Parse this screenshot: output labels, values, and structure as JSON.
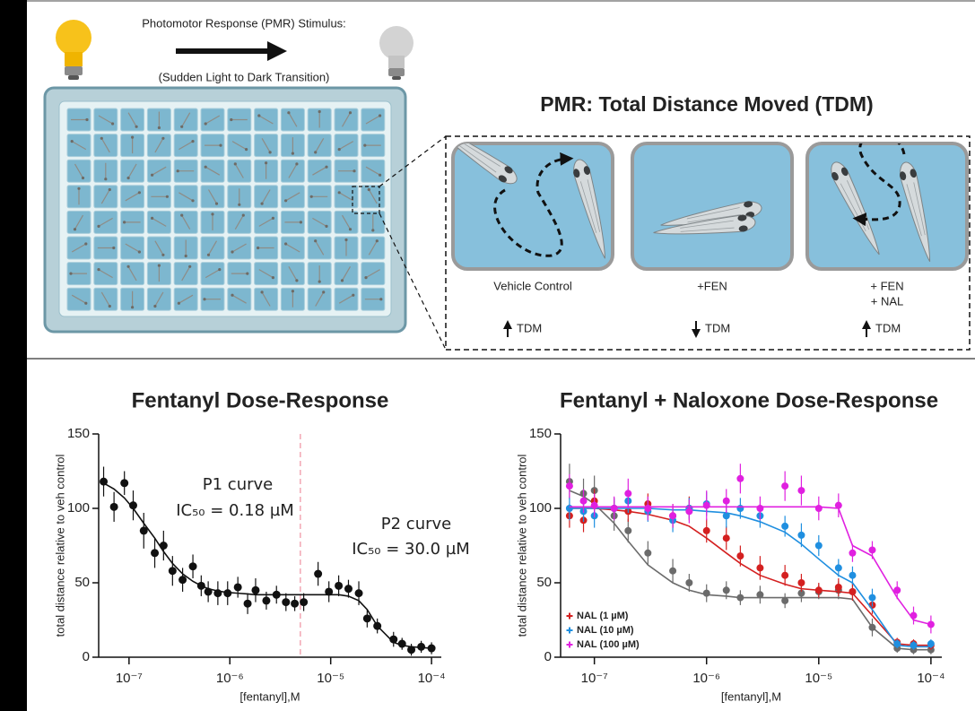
{
  "diagram": {
    "stimulus": {
      "title": "Photomotor Response (PMR) Stimulus:",
      "subtitle": "(Sudden Light to Dark Transition)"
    },
    "panel_title": "PMR: Total Distance Moved (TDM)",
    "conditions": [
      {
        "label": [
          "Vehicle Control"
        ],
        "effect": "TDM"
      },
      {
        "label": [
          "+FEN"
        ],
        "effect": "TDM"
      },
      {
        "label": [
          "+ FEN",
          "+ NAL"
        ],
        "effect": "TDM"
      }
    ]
  },
  "chart_data": [
    {
      "type": "scatter",
      "title": "Fentanyl Dose-Response",
      "xlabel": "[fentanyl],M",
      "ylabel": "total distance relative to veh control",
      "annotations": [
        "P1 curve",
        "IC₅₀ = 0.18 µM",
        "P2 curve",
        "IC₅₀ = 30.0 µM"
      ],
      "xscale": "log",
      "xlim": [
        5e-08,
        0.000125
      ],
      "xticks": [
        {
          "value": 1e-07,
          "label": "10⁻⁷"
        },
        {
          "value": 1e-06,
          "label": "10⁻⁶"
        },
        {
          "value": 1e-05,
          "label": "10⁻⁵"
        },
        {
          "value": 0.0001,
          "label": "10⁻⁴"
        }
      ],
      "ylim": [
        0,
        150
      ],
      "yticks": [
        0,
        50,
        100,
        150
      ],
      "color": "#111111",
      "reference_line": {
        "x": 5e-06,
        "color": "#f2a7b3"
      },
      "x": [
        5.6e-08,
        7.1e-08,
        9e-08,
        1.1e-07,
        1.4e-07,
        1.8e-07,
        2.2e-07,
        2.7e-07,
        3.4e-07,
        4.3e-07,
        5.2e-07,
        6.1e-07,
        7.6e-07,
        9.5e-07,
        1.2e-06,
        1.5e-06,
        1.8e-06,
        2.3e-06,
        2.9e-06,
        3.6e-06,
        4.4e-06,
        5.4e-06,
        7.5e-06,
        9.6e-06,
        1.2e-05,
        1.5e-05,
        1.9e-05,
        2.3e-05,
        2.9e-05,
        4.2e-05,
        5.1e-05,
        6.3e-05,
        7.9e-05,
        0.0001
      ],
      "values": [
        118,
        101,
        117,
        102,
        85,
        70,
        75,
        58,
        52,
        61,
        48,
        44,
        43,
        43,
        47,
        36,
        45,
        38,
        42,
        37,
        36,
        37,
        56,
        44,
        48,
        46,
        43,
        26,
        21,
        12,
        9,
        5,
        7,
        6
      ],
      "errors": [
        10,
        10,
        8,
        10,
        12,
        10,
        10,
        10,
        8,
        8,
        7,
        7,
        8,
        8,
        7,
        7,
        8,
        6,
        6,
        6,
        5,
        6,
        8,
        7,
        7,
        6,
        8,
        6,
        5,
        5,
        4,
        4,
        4,
        4
      ],
      "fit": [
        117,
        113,
        107,
        100,
        90,
        80,
        71,
        63,
        56,
        51,
        48,
        46,
        44.5,
        43.5,
        43,
        42.5,
        42,
        42,
        42,
        42,
        42,
        42,
        42,
        42,
        42,
        41,
        38,
        32,
        21,
        10,
        8,
        7,
        6.5,
        6
      ]
    },
    {
      "type": "scatter",
      "title": "Fentanyl + Naloxone Dose-Response",
      "xlabel": "[fentanyl],M",
      "ylabel": "total distance relative to veh control",
      "xscale": "log",
      "xlim": [
        5e-08,
        0.000125
      ],
      "xticks": [
        {
          "value": 1e-07,
          "label": "10⁻⁷"
        },
        {
          "value": 1e-06,
          "label": "10⁻⁶"
        },
        {
          "value": 1e-05,
          "label": "10⁻⁵"
        },
        {
          "value": 0.0001,
          "label": "10⁻⁴"
        }
      ],
      "ylim": [
        0,
        150
      ],
      "yticks": [
        0,
        50,
        100,
        150
      ],
      "legend": "lower left",
      "x": [
        6e-08,
        8e-08,
        1e-07,
        1.5e-07,
        2e-07,
        3e-07,
        5e-07,
        7e-07,
        1e-06,
        1.5e-06,
        2e-06,
        3e-06,
        5e-06,
        7e-06,
        1e-05,
        1.5e-05,
        2e-05,
        3e-05,
        5e-05,
        7e-05,
        0.0001
      ],
      "series": [
        {
          "color": "#6b6b6b",
          "values": [
            118,
            110,
            112,
            95,
            85,
            70,
            58,
            50,
            43,
            45,
            40,
            42,
            38,
            43,
            44,
            45,
            44,
            20,
            6,
            5,
            5
          ],
          "errors": [
            12,
            10,
            10,
            10,
            8,
            8,
            8,
            6,
            6,
            6,
            5,
            6,
            5,
            6,
            5,
            6,
            6,
            6,
            3,
            3,
            3
          ],
          "fit": [
            112,
            108,
            103,
            90,
            78,
            62,
            50,
            45,
            42,
            41,
            40,
            40,
            40,
            40,
            40,
            40,
            39,
            20,
            6,
            5,
            5
          ]
        },
        {
          "name": "NAL (1 µM)",
          "color": "#d42020",
          "values": [
            95,
            92,
            105,
            100,
            98,
            103,
            95,
            100,
            85,
            80,
            68,
            60,
            55,
            50,
            45,
            47,
            44,
            35,
            10,
            9,
            8
          ],
          "errors": [
            8,
            8,
            8,
            7,
            7,
            7,
            8,
            8,
            8,
            8,
            7,
            8,
            7,
            6,
            5,
            6,
            6,
            6,
            3,
            3,
            3
          ],
          "fit": [
            100,
            100,
            100,
            99,
            98,
            96,
            92,
            88,
            80,
            70,
            63,
            55,
            49,
            46,
            45,
            44,
            43,
            28,
            9,
            8,
            8
          ]
        },
        {
          "name": "NAL (10 µM)",
          "color": "#1f8fe0",
          "values": [
            100,
            98,
            95,
            100,
            105,
            98,
            92,
            100,
            103,
            95,
            100,
            95,
            88,
            82,
            75,
            60,
            55,
            40,
            9,
            8,
            9
          ],
          "errors": [
            8,
            7,
            8,
            7,
            8,
            7,
            8,
            7,
            8,
            8,
            7,
            8,
            7,
            8,
            7,
            6,
            6,
            6,
            3,
            3,
            3
          ],
          "fit": [
            100,
            100,
            100,
            100,
            100,
            100,
            99,
            99,
            98,
            97,
            95,
            91,
            84,
            76,
            66,
            55,
            50,
            32,
            8,
            7,
            7
          ]
        },
        {
          "name": "NAL (100 µM)",
          "color": "#e020e0",
          "values": [
            115,
            105,
            102,
            100,
            110,
            100,
            95,
            98,
            102,
            105,
            120,
            100,
            115,
            112,
            100,
            102,
            70,
            72,
            45,
            28,
            22
          ],
          "errors": [
            8,
            8,
            8,
            8,
            10,
            8,
            8,
            8,
            10,
            8,
            10,
            8,
            10,
            10,
            8,
            8,
            6,
            6,
            6,
            6,
            6
          ],
          "fit": [
            101,
            101,
            101,
            101,
            101,
            101,
            101,
            101,
            101,
            101,
            101,
            101,
            101,
            101,
            101,
            100,
            75,
            68,
            40,
            25,
            22
          ]
        }
      ]
    }
  ]
}
